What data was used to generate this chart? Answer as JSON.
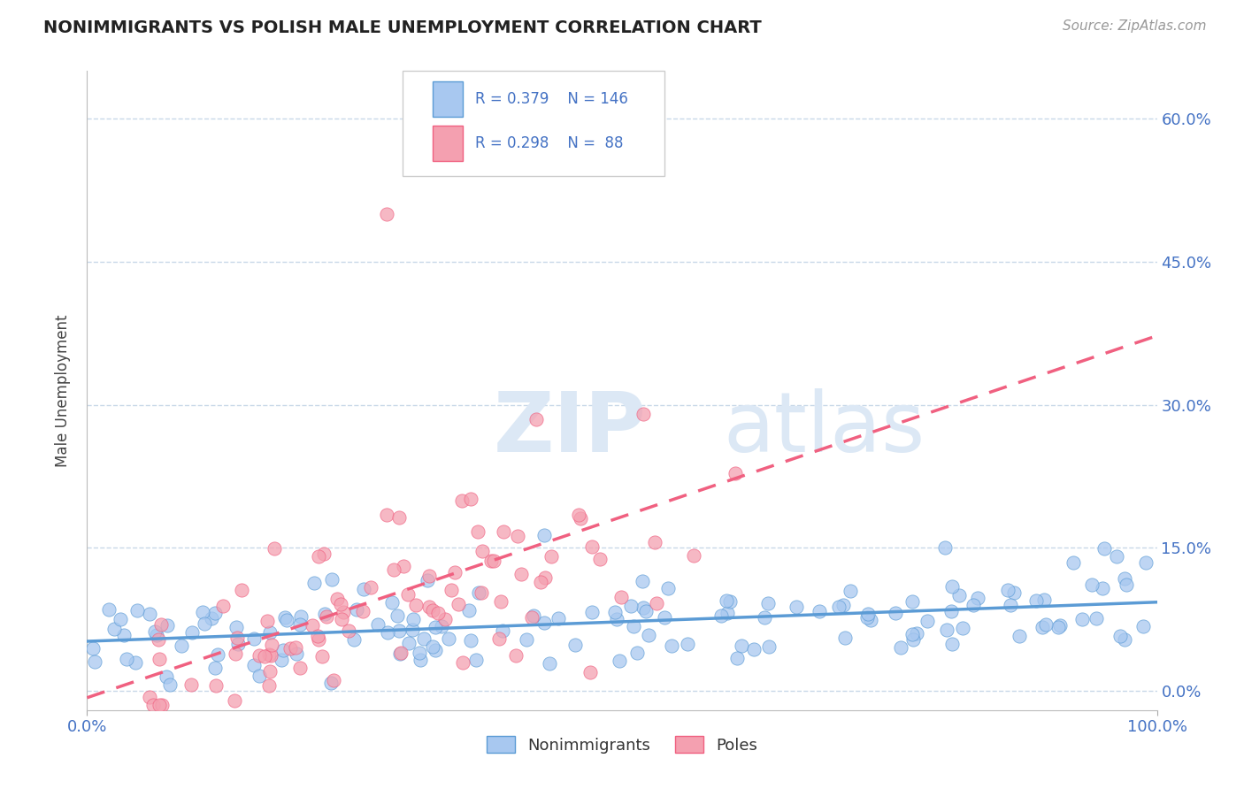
{
  "title": "NONIMMIGRANTS VS POLISH MALE UNEMPLOYMENT CORRELATION CHART",
  "source_text": "Source: ZipAtlas.com",
  "ylabel": "Male Unemployment",
  "xmin": 0.0,
  "xmax": 1.0,
  "ymin": -0.02,
  "ymax": 0.65,
  "yticks": [
    0.0,
    0.15,
    0.3,
    0.45,
    0.6
  ],
  "ytick_labels": [
    "0.0%",
    "15.0%",
    "30.0%",
    "45.0%",
    "60.0%"
  ],
  "xtick_labels": [
    "0.0%",
    "100.0%"
  ],
  "legend_r1": "0.379",
  "legend_n1": "146",
  "legend_r2": "0.298",
  "legend_n2": " 88",
  "color_nonimm": "#a8c8f0",
  "color_poles": "#f4a0b0",
  "color_nonimm_line": "#5b9bd5",
  "color_poles_line": "#f06080",
  "color_blue_text": "#4472c4",
  "watermark_color": "#dce8f5",
  "background_color": "#ffffff",
  "grid_color": "#c8d8e8",
  "R1": 0.379,
  "N1": 146,
  "R2": 0.298,
  "N2": 88,
  "seed": 42
}
